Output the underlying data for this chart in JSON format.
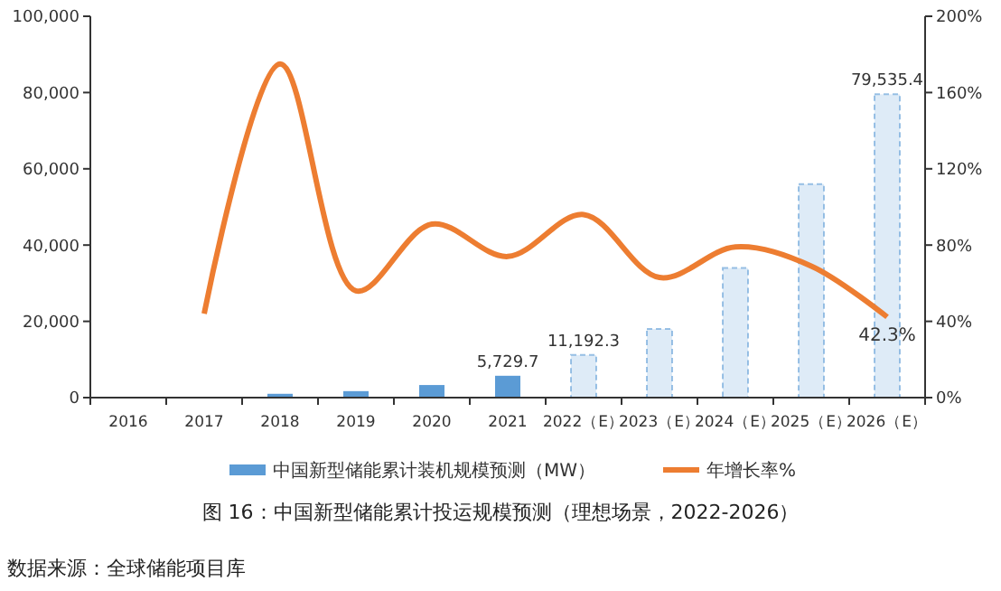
{
  "chart_data": {
    "type": "bar",
    "title": "图 16：中国新型储能累计投运规模预测（理想场景，2022-2026）",
    "categories": [
      "2016",
      "2017",
      "2018",
      "2019",
      "2020",
      "2021",
      "2022（E）",
      "2023（E）",
      "2024（E）",
      "2025（E）",
      "2026（E）"
    ],
    "series": [
      {
        "name": "中国新型储能累计装机规模预测（MW）",
        "color": "#5b9bd5",
        "colors": [
          "#5b9bd5",
          "#5b9bd5",
          "#5b9bd5",
          "#5b9bd5",
          "#5b9bd5",
          "#5b9bd5",
          "#deebf7",
          "#deebf7",
          "#deebf7",
          "#deebf7",
          "#deebf7"
        ],
        "values": [
          0,
          0,
          1000,
          1700,
          3300,
          5729.7,
          11192.3,
          18000,
          34000,
          56000,
          79535.4
        ],
        "value_labels": [
          null,
          null,
          null,
          null,
          null,
          "5,729.7",
          "11,192.3",
          null,
          null,
          null,
          "79,535.4"
        ]
      },
      {
        "name": "年增长率%",
        "type": "line",
        "axis": "y2",
        "color": "#ed7d31",
        "values": [
          null,
          44,
          175,
          56,
          91,
          74,
          96,
          63,
          79,
          69,
          42.3
        ],
        "value_labels": [
          null,
          null,
          null,
          null,
          null,
          null,
          null,
          null,
          null,
          null,
          "42.3%"
        ]
      }
    ],
    "ylim": [
      0,
      100000
    ],
    "yticks": [
      {
        "value": 0,
        "label": "0"
      },
      {
        "value": 20000,
        "label": "20,000"
      },
      {
        "value": 40000,
        "label": "40,000"
      },
      {
        "value": 60000,
        "label": "60,000"
      },
      {
        "value": 80000,
        "label": "80,000"
      },
      {
        "value": 100000,
        "label": "100,000"
      }
    ],
    "y2lim": [
      0,
      200
    ],
    "y2ticks": [
      {
        "value": 0,
        "label": "0%"
      },
      {
        "value": 40,
        "label": "40%"
      },
      {
        "value": 80,
        "label": "80%"
      },
      {
        "value": 120,
        "label": "120%"
      },
      {
        "value": 160,
        "label": "160%"
      },
      {
        "value": 200,
        "label": "200%"
      }
    ],
    "legend": "bottom",
    "grid": false,
    "marker": "none",
    "annotations": [
      "数据来源：全球储能项目库"
    ]
  }
}
